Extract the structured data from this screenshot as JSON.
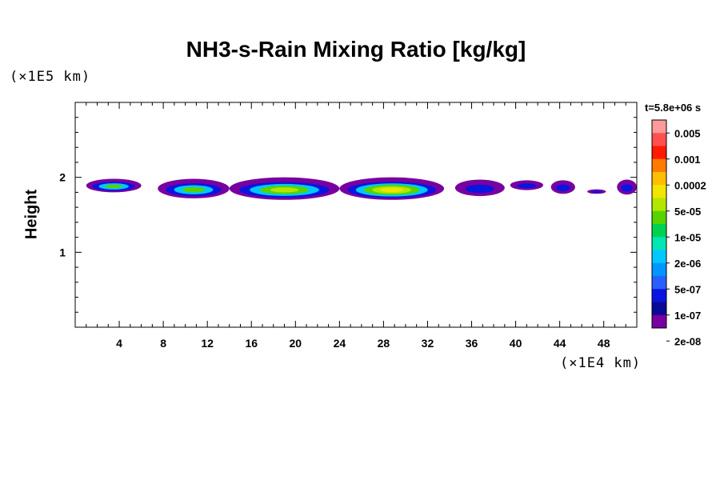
{
  "chart_data": {
    "type": "heatmap",
    "title": "NH3-s-Rain Mixing Ratio [kg/kg]",
    "ylabel": "Height",
    "y_unit": "(×1E5 km)",
    "x_unit": "(×1E4 km)",
    "time_label": "t=5.8e+06 s",
    "xlim": [
      0,
      51
    ],
    "ylim": [
      0,
      3
    ],
    "x_ticks": [
      "4",
      "8",
      "12",
      "16",
      "20",
      "24",
      "28",
      "32",
      "36",
      "40",
      "44",
      "48"
    ],
    "x_tick_values": [
      4,
      8,
      12,
      16,
      20,
      24,
      28,
      32,
      36,
      40,
      44,
      48
    ],
    "y_ticks": [
      "1",
      "2"
    ],
    "y_tick_values": [
      1,
      2
    ],
    "colorbar": {
      "labels": [
        "0.005",
        "0.001",
        "0.0002",
        "5e-05",
        "1e-05",
        "2e-06",
        "5e-07",
        "1e-07",
        "2e-08"
      ],
      "colors": [
        "#ff9a9a",
        "#ff5050",
        "#ff1a00",
        "#ff7a00",
        "#ffbe00",
        "#f0e600",
        "#b4e600",
        "#58d200",
        "#00d250",
        "#00e6b4",
        "#00c8ff",
        "#0096ff",
        "#2860ff",
        "#0a14e0",
        "#0a0a96",
        "#7800a0"
      ]
    },
    "series": [
      {
        "level_colors": [
          "#7800a0",
          "#0a14e0",
          "#00c8ff",
          "#58d200",
          "#b4e600",
          "#f0e600"
        ],
        "blobs": [
          {
            "x0": 1.0,
            "x1": 6.0,
            "y0": 1.8,
            "y1": 1.98,
            "peak": 3
          },
          {
            "x0": 7.5,
            "x1": 14.0,
            "y0": 1.72,
            "y1": 1.98,
            "peak": 3
          },
          {
            "x0": 14.0,
            "x1": 24.0,
            "y0": 1.7,
            "y1": 2.0,
            "peak": 4
          },
          {
            "x0": 24.0,
            "x1": 33.5,
            "y0": 1.7,
            "y1": 2.0,
            "peak": 5
          },
          {
            "x0": 34.5,
            "x1": 39.0,
            "y0": 1.75,
            "y1": 1.97,
            "peak": 1
          },
          {
            "x0": 39.5,
            "x1": 42.5,
            "y0": 1.83,
            "y1": 1.96,
            "peak": 1
          },
          {
            "x0": 43.2,
            "x1": 45.4,
            "y0": 1.78,
            "y1": 1.96,
            "peak": 1
          },
          {
            "x0": 46.5,
            "x1": 48.2,
            "y0": 1.78,
            "y1": 1.84,
            "peak": 1
          },
          {
            "x0": 49.2,
            "x1": 51.0,
            "y0": 1.77,
            "y1": 1.97,
            "peak": 1
          }
        ]
      }
    ]
  }
}
